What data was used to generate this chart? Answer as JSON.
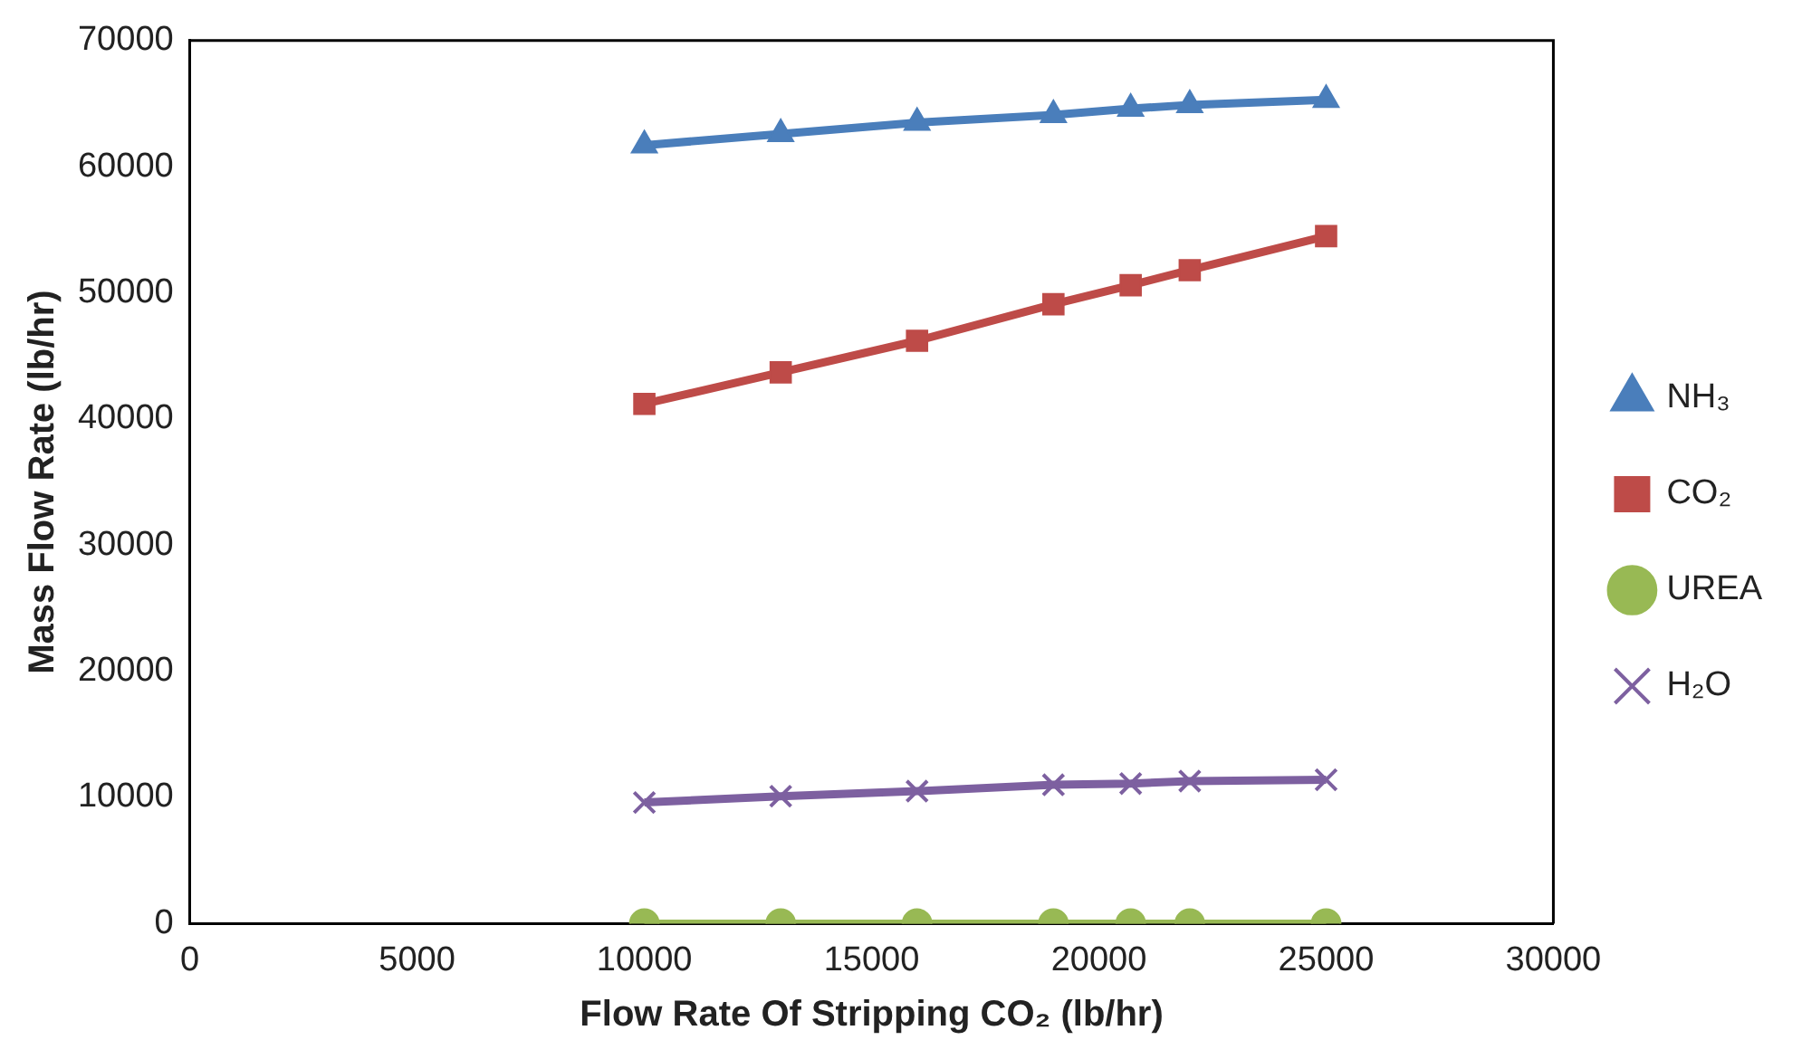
{
  "chart_data": {
    "type": "line",
    "xlabel": "Flow Rate Of Stripping CO₂ (lb/hr)",
    "ylabel": "Mass Flow Rate (lb/hr)",
    "x": [
      10000,
      13000,
      16000,
      19000,
      20700,
      22000,
      25000
    ],
    "series": [
      {
        "name": "NH₃",
        "color": "#4a7ebb",
        "marker": "triangle",
        "values": [
          61700,
          62600,
          63500,
          64100,
          64600,
          64900,
          65300
        ]
      },
      {
        "name": "CO₂",
        "color": "#be4b48",
        "marker": "square",
        "values": [
          41200,
          43700,
          46200,
          49100,
          50600,
          51800,
          54500
        ]
      },
      {
        "name": "UREA",
        "color": "#98b954",
        "marker": "circle",
        "values": [
          0,
          0,
          0,
          0,
          0,
          0,
          0
        ]
      },
      {
        "name": "H₂O",
        "color": "#7d60a0",
        "marker": "cross",
        "values": [
          9600,
          10100,
          10500,
          11000,
          11100,
          11300,
          11400
        ]
      }
    ],
    "xlim": [
      0,
      30000
    ],
    "xticks": [
      0,
      5000,
      10000,
      15000,
      20000,
      25000,
      30000
    ],
    "ylim": [
      0,
      70000
    ],
    "yticks": [
      0,
      10000,
      20000,
      30000,
      40000,
      50000,
      60000,
      70000
    ],
    "grid": false,
    "legend": "right",
    "line_style": "solid"
  }
}
